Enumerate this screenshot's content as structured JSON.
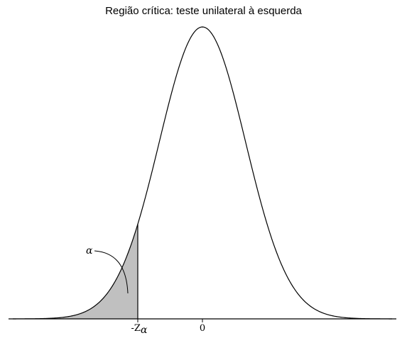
{
  "title": "Região crítica: teste unilateral à esquerda",
  "chart_data": {
    "type": "area",
    "distribution": "standard normal",
    "xlim": [
      -4.4,
      4.4
    ],
    "critical_value": -1.5,
    "tick_labels": {
      "critical": {
        "prefix": "-Z",
        "subscript": "α"
      },
      "center": "0"
    },
    "annotations": {
      "alpha_label": "α"
    },
    "grid": false,
    "colors": {
      "curve": "#000000",
      "shaded_region": "#c0c0c0"
    }
  }
}
